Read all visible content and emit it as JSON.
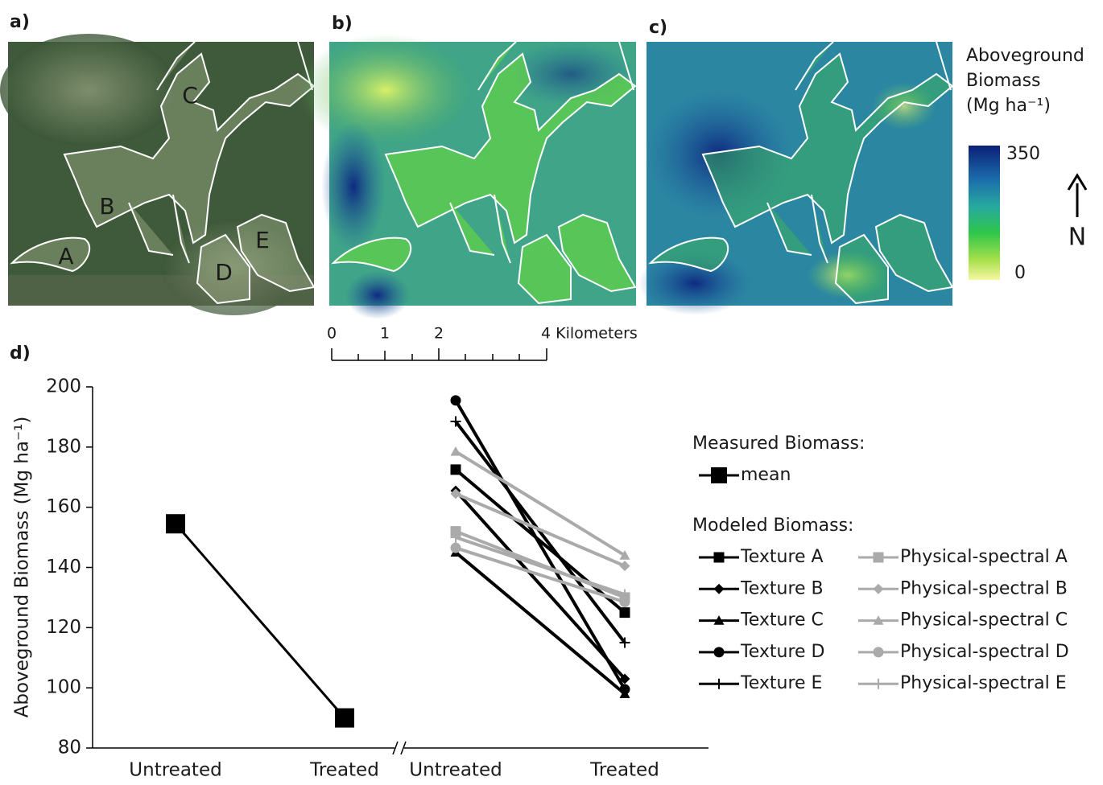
{
  "panels": [
    "a)",
    "b)",
    "c)",
    "d)"
  ],
  "map_labels": [
    "A",
    "B",
    "C",
    "D",
    "E"
  ],
  "colorbar": {
    "title": [
      "Aboveground",
      "Biomass",
      "(Mg ha⁻¹)"
    ],
    "max_label": "350",
    "min_label": "0"
  },
  "north": "N",
  "scale_bar": {
    "labels": [
      "0",
      "1",
      "2",
      "4 Kilometers"
    ]
  },
  "chart_data": {
    "type": "line",
    "y_label": "Aboveground Biomass (Mg ha⁻¹)",
    "ylim": [
      80,
      200
    ],
    "yticks": [
      80,
      100,
      120,
      140,
      160,
      180,
      200
    ],
    "categories": [
      "Untreated",
      "Treated",
      "Untreated",
      "Treated"
    ],
    "groups": [
      {
        "title": "Measured Biomass:",
        "series": [
          {
            "name": "mean",
            "color": "#000000",
            "marker": "square",
            "values": [
              154.5,
              90,
              null,
              null
            ]
          }
        ]
      },
      {
        "title": "Modeled Biomass:",
        "series": [
          {
            "name": "Texture A",
            "color": "#000000",
            "marker": "square",
            "values": [
              null,
              null,
              172.5,
              125
            ]
          },
          {
            "name": "Texture B",
            "color": "#000000",
            "marker": "diamond",
            "values": [
              null,
              null,
              165.5,
              103
            ]
          },
          {
            "name": "Texture C",
            "color": "#000000",
            "marker": "triangle",
            "values": [
              null,
              null,
              145,
              98
            ]
          },
          {
            "name": "Texture D",
            "color": "#000000",
            "marker": "circle",
            "values": [
              null,
              null,
              195.5,
              99.5
            ]
          },
          {
            "name": "Texture E",
            "color": "#000000",
            "marker": "plus",
            "values": [
              null,
              null,
              188.5,
              115
            ]
          },
          {
            "name": "Physical-spectral A",
            "color": "#aaaaaa",
            "marker": "square",
            "values": [
              null,
              null,
              152,
              130
            ]
          },
          {
            "name": "Physical-spectral B",
            "color": "#aaaaaa",
            "marker": "diamond",
            "values": [
              null,
              null,
              164.5,
              140.5
            ]
          },
          {
            "name": "Physical-spectral C",
            "color": "#aaaaaa",
            "marker": "triangle",
            "values": [
              null,
              null,
              178.5,
              144
            ]
          },
          {
            "name": "Physical-spectral D",
            "color": "#aaaaaa",
            "marker": "circle",
            "values": [
              null,
              null,
              146.5,
              128.5
            ]
          },
          {
            "name": "Physical-spectral E",
            "color": "#aaaaaa",
            "marker": "plus",
            "values": [
              null,
              null,
              150,
              131
            ]
          }
        ]
      }
    ]
  }
}
